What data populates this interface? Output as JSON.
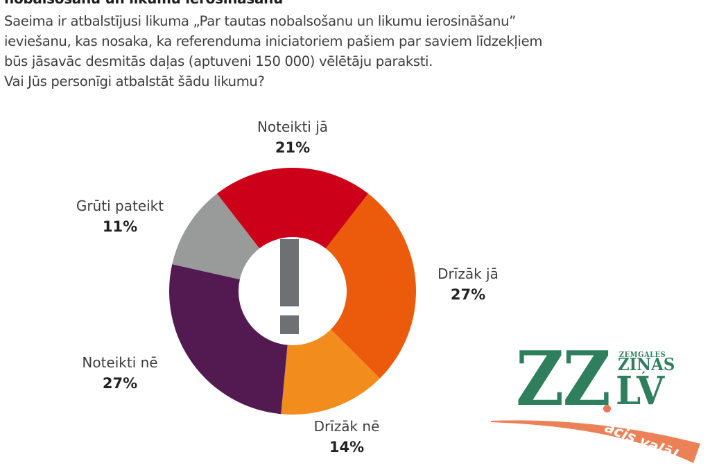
{
  "header": {
    "cut_title": "nobalsošanu un likumu ierosināšanu",
    "question_lines": [
      "Saeima ir atbalstījusi likuma „Par tautas nobalsošanu un likumu ierosināšanu”",
      "ieviešanu, kas nosaka, ka referenduma iniciatoriem pašiem par saviem līdzekļiem",
      "būs jāsavāc desmitās daļas (aptuveni 150 000) vēlētāju paraksti.",
      "Vai Jūs personīgi atbalstāt šādu likumu?"
    ]
  },
  "center_icon": "exclamation-icon",
  "labels": {
    "noteikti_ja": {
      "name": "Noteikti jā",
      "pct": "21%"
    },
    "drizak_ja": {
      "name": "Drīzāk jā",
      "pct": "27%"
    },
    "drizak_ne": {
      "name": "Drīzāk nē",
      "pct": "14%"
    },
    "noteikti_ne": {
      "name": "Noteikti nē",
      "pct": "27%"
    },
    "gruti_pateikt": {
      "name": "Grūti pateikt",
      "pct": "11%"
    }
  },
  "logo": {
    "main": "ZZ",
    "small_top": "ZEMGALES",
    "small_mid": "ZIŅAS",
    "domain": "LV",
    "slogan": "acis vaļā!",
    "green": "#2f7f5e",
    "orange": "#ec8157"
  },
  "chart_data": {
    "type": "pie",
    "subtype": "donut",
    "title": "Vai Jūs personīgi atbalstāt šādu likumu?",
    "start_angle_deg": 322.2,
    "categories": [
      "Noteikti jā",
      "Drīzāk jā",
      "Drīzāk nē",
      "Noteikti nē",
      "Grūti pateikt"
    ],
    "values": [
      21,
      27,
      14,
      27,
      11
    ],
    "unit": "%",
    "colors": [
      "#cc0018",
      "#ec5a0c",
      "#f28c1c",
      "#531a52",
      "#999a9a"
    ],
    "center": [
      422,
      420
    ],
    "outer_radius": 178,
    "inner_radius": 78,
    "legend": "labels placed outside each segment"
  }
}
